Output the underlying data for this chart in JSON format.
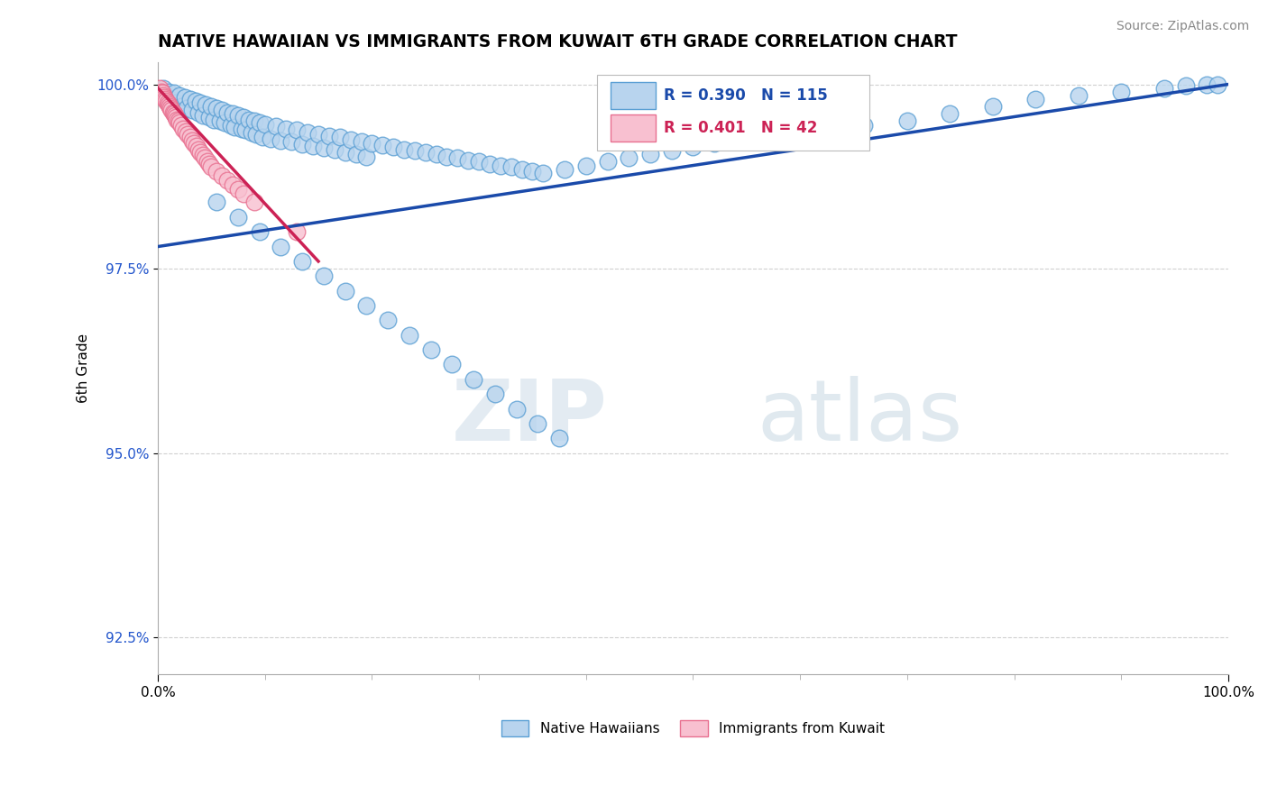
{
  "title": "NATIVE HAWAIIAN VS IMMIGRANTS FROM KUWAIT 6TH GRADE CORRELATION CHART",
  "source_text": "Source: ZipAtlas.com",
  "ylabel": "6th Grade",
  "xlabel": "",
  "xlim": [
    0.0,
    1.0
  ],
  "ylim": [
    0.92,
    1.003
  ],
  "yticks": [
    0.925,
    0.95,
    0.975,
    1.0
  ],
  "ytick_labels": [
    "92.5%",
    "95.0%",
    "97.5%",
    "100.0%"
  ],
  "xtick_labels": [
    "0.0%",
    "100.0%"
  ],
  "blue_R": 0.39,
  "blue_N": 115,
  "pink_R": 0.401,
  "pink_N": 42,
  "blue_color": "#b8d4ee",
  "blue_edge_color": "#5a9fd4",
  "pink_color": "#f8c0d0",
  "pink_edge_color": "#e87090",
  "trend_blue": "#1a4aaa",
  "trend_pink": "#cc2255",
  "watermark_zip": "ZIP",
  "watermark_atlas": "atlas",
  "blue_scatter_x": [
    0.005,
    0.008,
    0.01,
    0.012,
    0.015,
    0.017,
    0.02,
    0.022,
    0.025,
    0.027,
    0.03,
    0.032,
    0.035,
    0.038,
    0.04,
    0.042,
    0.045,
    0.048,
    0.05,
    0.052,
    0.055,
    0.058,
    0.06,
    0.062,
    0.065,
    0.068,
    0.07,
    0.072,
    0.075,
    0.078,
    0.08,
    0.082,
    0.085,
    0.088,
    0.09,
    0.092,
    0.095,
    0.098,
    0.1,
    0.105,
    0.11,
    0.115,
    0.12,
    0.125,
    0.13,
    0.135,
    0.14,
    0.145,
    0.15,
    0.155,
    0.16,
    0.165,
    0.17,
    0.175,
    0.18,
    0.185,
    0.19,
    0.195,
    0.2,
    0.21,
    0.22,
    0.23,
    0.24,
    0.25,
    0.26,
    0.27,
    0.28,
    0.29,
    0.3,
    0.31,
    0.32,
    0.33,
    0.34,
    0.35,
    0.36,
    0.38,
    0.4,
    0.42,
    0.44,
    0.46,
    0.48,
    0.5,
    0.52,
    0.55,
    0.58,
    0.6,
    0.63,
    0.66,
    0.7,
    0.74,
    0.78,
    0.82,
    0.86,
    0.9,
    0.94,
    0.96,
    0.98,
    0.99,
    0.055,
    0.075,
    0.095,
    0.115,
    0.135,
    0.155,
    0.175,
    0.195,
    0.215,
    0.235,
    0.255,
    0.275,
    0.295,
    0.315,
    0.335,
    0.355,
    0.375
  ],
  "blue_scatter_y": [
    0.9995,
    0.9985,
    0.999,
    0.998,
    0.9988,
    0.9975,
    0.9985,
    0.997,
    0.9982,
    0.9968,
    0.998,
    0.9965,
    0.9978,
    0.9962,
    0.9975,
    0.9958,
    0.9972,
    0.9955,
    0.997,
    0.9952,
    0.9968,
    0.995,
    0.9965,
    0.9948,
    0.9962,
    0.9945,
    0.996,
    0.9942,
    0.9958,
    0.994,
    0.9955,
    0.9938,
    0.9952,
    0.9935,
    0.995,
    0.9932,
    0.9948,
    0.9929,
    0.9946,
    0.9926,
    0.9943,
    0.9924,
    0.994,
    0.9922,
    0.9938,
    0.9919,
    0.9935,
    0.9916,
    0.9932,
    0.9914,
    0.993,
    0.9911,
    0.9928,
    0.9908,
    0.9925,
    0.9905,
    0.9922,
    0.9902,
    0.992,
    0.9918,
    0.9915,
    0.9912,
    0.991,
    0.9908,
    0.9905,
    0.9902,
    0.99,
    0.9897,
    0.9895,
    0.9892,
    0.989,
    0.9888,
    0.9885,
    0.9882,
    0.988,
    0.9885,
    0.989,
    0.9895,
    0.99,
    0.9905,
    0.991,
    0.9915,
    0.992,
    0.9925,
    0.993,
    0.9935,
    0.994,
    0.9945,
    0.995,
    0.996,
    0.997,
    0.998,
    0.9985,
    0.999,
    0.9995,
    0.9998,
    0.9999,
    1.0,
    0.984,
    0.982,
    0.98,
    0.978,
    0.976,
    0.974,
    0.972,
    0.97,
    0.968,
    0.966,
    0.964,
    0.962,
    0.96,
    0.958,
    0.956,
    0.954,
    0.952
  ],
  "pink_scatter_x": [
    0.002,
    0.003,
    0.004,
    0.005,
    0.006,
    0.007,
    0.008,
    0.009,
    0.01,
    0.011,
    0.012,
    0.013,
    0.014,
    0.015,
    0.016,
    0.017,
    0.018,
    0.019,
    0.02,
    0.022,
    0.024,
    0.026,
    0.028,
    0.03,
    0.032,
    0.034,
    0.036,
    0.038,
    0.04,
    0.042,
    0.044,
    0.046,
    0.048,
    0.05,
    0.055,
    0.06,
    0.065,
    0.07,
    0.075,
    0.08,
    0.09,
    0.13
  ],
  "pink_scatter_y": [
    0.9995,
    0.999,
    0.9988,
    0.9985,
    0.9982,
    0.998,
    0.9978,
    0.9975,
    0.9972,
    0.997,
    0.9968,
    0.9965,
    0.9962,
    0.996,
    0.9958,
    0.9955,
    0.9952,
    0.995,
    0.9948,
    0.9944,
    0.994,
    0.9936,
    0.9932,
    0.9928,
    0.9924,
    0.992,
    0.9916,
    0.9912,
    0.9908,
    0.9904,
    0.99,
    0.9896,
    0.9892,
    0.9888,
    0.9882,
    0.9876,
    0.987,
    0.9864,
    0.9858,
    0.9852,
    0.984,
    0.98
  ],
  "blue_trend_x0": 0.0,
  "blue_trend_y0": 0.978,
  "blue_trend_x1": 1.0,
  "blue_trend_y1": 1.0,
  "pink_trend_x0": 0.0,
  "pink_trend_y0": 0.9995,
  "pink_trend_x1": 0.15,
  "pink_trend_y1": 0.976
}
